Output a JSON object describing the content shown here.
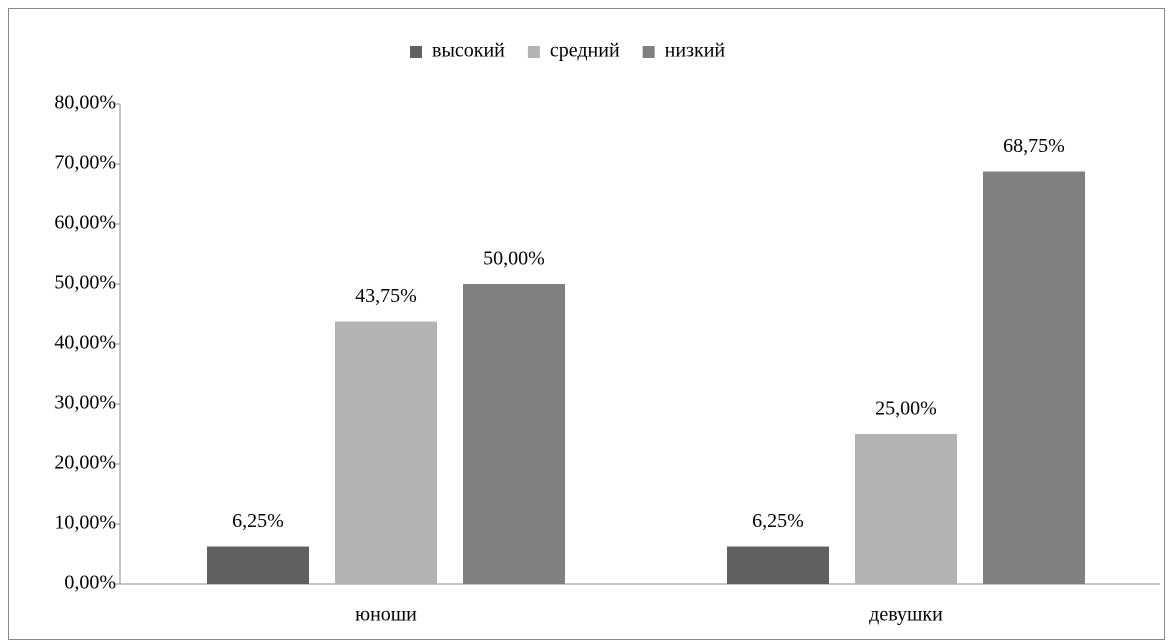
{
  "chart_data": {
    "type": "bar",
    "categories": [
      "юноши",
      "девушки"
    ],
    "series": [
      {
        "name": "высокий",
        "color": "#606060",
        "values": [
          6.25,
          6.25
        ],
        "value_labels": [
          "6,25%",
          "6,25%"
        ]
      },
      {
        "name": "средний",
        "color": "#b3b3b3",
        "values": [
          43.75,
          25
        ],
        "value_labels": [
          "43,75%",
          "25,00%"
        ]
      },
      {
        "name": "низкий",
        "color": "#808080",
        "values": [
          50,
          68.75
        ],
        "value_labels": [
          "50,00%",
          "68,75%"
        ]
      }
    ],
    "ylim": [
      0,
      80
    ],
    "yticks": [
      {
        "value": 0,
        "label": "0,00%"
      },
      {
        "value": 10,
        "label": "10,00%"
      },
      {
        "value": 20,
        "label": "20,00%"
      },
      {
        "value": 30,
        "label": "30,00%"
      },
      {
        "value": 40,
        "label": "40,00%"
      },
      {
        "value": 50,
        "label": "50,00%"
      },
      {
        "value": 60,
        "label": "60,00%"
      },
      {
        "value": 70,
        "label": "70,00%"
      },
      {
        "value": 80,
        "label": "80,00%"
      }
    ],
    "grid": false,
    "legend": "top"
  }
}
